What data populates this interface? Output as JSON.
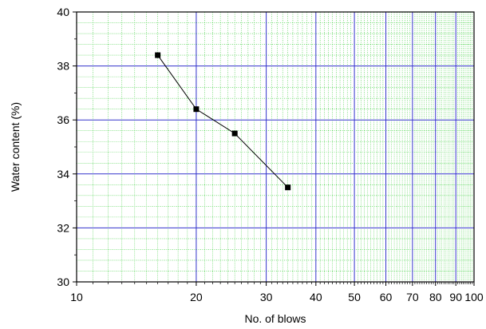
{
  "chart_data": {
    "type": "scatter",
    "title": "",
    "xlabel": "No. of blows",
    "ylabel": "Water content (%)",
    "x_scale": "log",
    "xlim": [
      10,
      100
    ],
    "ylim": [
      30,
      40
    ],
    "x_major_ticks": [
      10,
      20,
      30,
      40,
      50,
      60,
      70,
      80,
      90,
      100
    ],
    "x_tick_labels": [
      "10",
      "20",
      "30",
      "40",
      "50",
      "60",
      "70",
      "80",
      "90",
      "100"
    ],
    "y_major_ticks": [
      30,
      32,
      34,
      36,
      38,
      40
    ],
    "y_tick_labels": [
      "30",
      "32",
      "34",
      "36",
      "38",
      "40"
    ],
    "grid": true,
    "legend": "none",
    "colors": {
      "major_grid": "#3333cc",
      "minor_grid": "#33cc33",
      "series": "#000000",
      "frame": "#000000"
    },
    "series": [
      {
        "marker": "square",
        "line": true,
        "x": [
          16,
          20,
          25,
          34
        ],
        "y": [
          38.4,
          36.4,
          35.5,
          33.5
        ]
      }
    ]
  }
}
